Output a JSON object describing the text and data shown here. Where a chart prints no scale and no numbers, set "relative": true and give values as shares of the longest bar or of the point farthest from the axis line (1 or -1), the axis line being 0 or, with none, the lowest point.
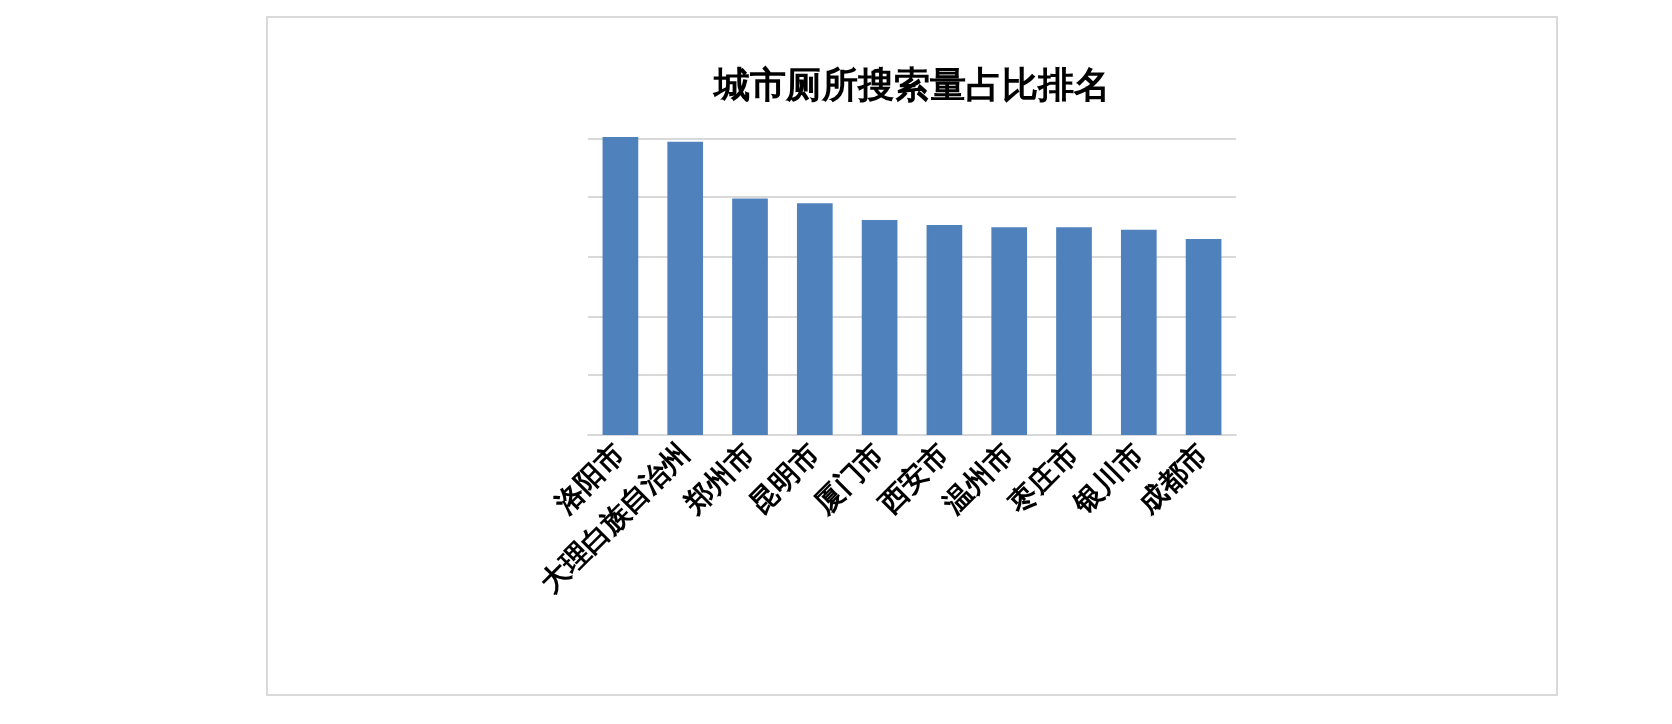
{
  "chart_data": {
    "type": "bar",
    "title": "城市厕所搜索量占比排名",
    "relative": true,
    "grid": "y",
    "categories": [
      "洛阳市",
      "大理白族自治州",
      "郑州市",
      "昆明市",
      "厦门市",
      "西安市",
      "温州市",
      "枣庄市",
      "银川市",
      "成都市"
    ],
    "values": [
      1,
      0.984,
      0.792,
      0.776,
      0.72,
      0.703,
      0.695,
      0.695,
      0.687,
      0.655
    ],
    "color": "#4f81bd"
  }
}
